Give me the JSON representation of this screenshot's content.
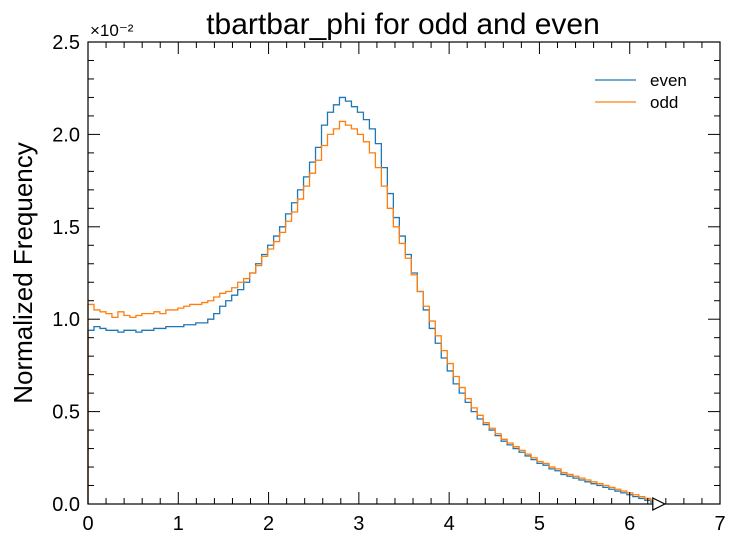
{
  "chart_data": {
    "type": "line",
    "title": "tbartbar_phi for odd and even",
    "xlabel": "",
    "ylabel": "Normalized Frequency",
    "y_multiplier_label": "×10⁻²",
    "xlim": [
      0,
      7
    ],
    "ylim": [
      0,
      2.5
    ],
    "x_ticks": [
      "0",
      "1",
      "2",
      "3",
      "4",
      "5",
      "6",
      "7"
    ],
    "y_ticks": [
      "0.0",
      "0.5",
      "1.0",
      "1.5",
      "2.0",
      "2.5"
    ],
    "grid": false,
    "legend_position": "top-right",
    "bin_range": [
      0,
      6.3
    ],
    "series": [
      {
        "name": "even",
        "color": "#1f77b4",
        "values": [
          0.94,
          0.96,
          0.95,
          0.94,
          0.94,
          0.93,
          0.94,
          0.94,
          0.93,
          0.94,
          0.94,
          0.95,
          0.95,
          0.96,
          0.96,
          0.96,
          0.97,
          0.97,
          0.98,
          0.98,
          1.0,
          1.03,
          1.07,
          1.1,
          1.13,
          1.16,
          1.2,
          1.25,
          1.3,
          1.35,
          1.4,
          1.45,
          1.5,
          1.57,
          1.63,
          1.7,
          1.77,
          1.85,
          1.93,
          2.05,
          2.12,
          2.16,
          2.2,
          2.18,
          2.15,
          2.12,
          2.08,
          2.03,
          1.95,
          1.82,
          1.68,
          1.55,
          1.45,
          1.35,
          1.25,
          1.15,
          1.05,
          0.95,
          0.87,
          0.79,
          0.72,
          0.65,
          0.6,
          0.55,
          0.5,
          0.46,
          0.43,
          0.4,
          0.37,
          0.34,
          0.32,
          0.3,
          0.28,
          0.26,
          0.24,
          0.22,
          0.21,
          0.19,
          0.18,
          0.16,
          0.15,
          0.14,
          0.13,
          0.12,
          0.11,
          0.1,
          0.09,
          0.08,
          0.07,
          0.06,
          0.05,
          0.04,
          0.03,
          0.02,
          0.01
        ]
      },
      {
        "name": "odd",
        "color": "#ff7f0e",
        "values": [
          1.08,
          1.05,
          1.04,
          1.03,
          1.01,
          1.04,
          1.02,
          1.01,
          1.02,
          1.03,
          1.03,
          1.04,
          1.03,
          1.05,
          1.05,
          1.06,
          1.07,
          1.08,
          1.08,
          1.09,
          1.1,
          1.12,
          1.14,
          1.15,
          1.17,
          1.2,
          1.22,
          1.25,
          1.29,
          1.34,
          1.38,
          1.42,
          1.47,
          1.53,
          1.58,
          1.65,
          1.72,
          1.79,
          1.86,
          1.94,
          2.0,
          2.03,
          2.07,
          2.05,
          2.03,
          2.0,
          1.96,
          1.9,
          1.82,
          1.72,
          1.6,
          1.5,
          1.41,
          1.33,
          1.24,
          1.15,
          1.07,
          0.99,
          0.91,
          0.83,
          0.76,
          0.69,
          0.63,
          0.57,
          0.52,
          0.48,
          0.44,
          0.41,
          0.38,
          0.35,
          0.33,
          0.31,
          0.29,
          0.27,
          0.25,
          0.23,
          0.22,
          0.2,
          0.19,
          0.17,
          0.16,
          0.15,
          0.14,
          0.13,
          0.12,
          0.11,
          0.1,
          0.09,
          0.08,
          0.07,
          0.06,
          0.05,
          0.04,
          0.03,
          0.02
        ]
      }
    ],
    "overflow_marker": {
      "x": 6.3,
      "shape": "triangle-right"
    }
  }
}
